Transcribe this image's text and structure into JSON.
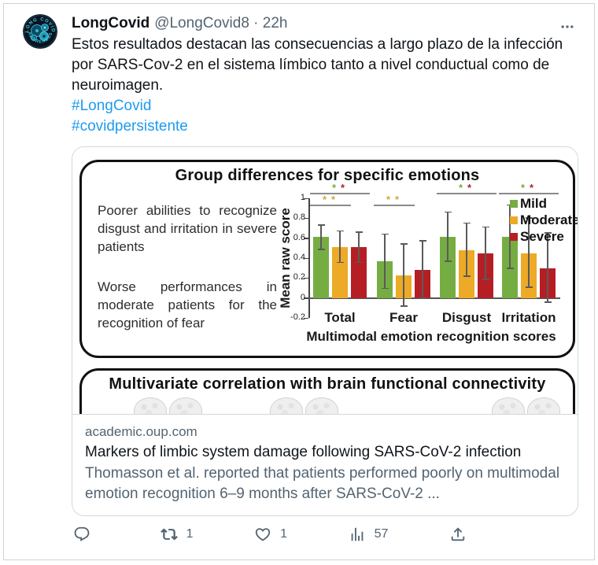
{
  "colors": {
    "accent_blue": "#1d9bf0",
    "text_dark": "#0f1419",
    "text_gray": "#536471",
    "card_border": "#cfd9de",
    "bar_green": "#76ad43",
    "bar_yellow": "#edaa27",
    "bar_red": "#b51f24"
  },
  "tweet": {
    "user": {
      "name": "LongCovid",
      "handle_time": "@LongCovid8 · 22h",
      "avatar_text_top": "LONG COVID",
      "avatar_text_bottom": "AWARENESS"
    },
    "text": "Estos resultados destacan las consecuencias a largo plazo de la infección por SARS-Cov-2 en el sistema límbico tanto a nivel conductual como de neuroimagen.",
    "hashtags": [
      "#LongCovid",
      "#covidpersistente"
    ]
  },
  "figure": {
    "panel1_title": "Group differences for specific emotions",
    "panel1_text1": "Poorer abilities to recognize disgust and irritation in severe patients",
    "panel1_text2": "Worse performances in moderate patients for the recognition of fear",
    "panel2_title": "Multivariate correlation with brain functional connectivity"
  },
  "chart_data": {
    "type": "bar",
    "title": "Group differences for specific emotions",
    "categories": [
      "Total",
      "Fear",
      "Disgust",
      "Irritation"
    ],
    "series": [
      {
        "name": "Mild",
        "color": "#76ad43",
        "values": [
          0.61,
          0.37,
          0.61,
          0.61
        ],
        "err_low": [
          0.49,
          0.1,
          0.37,
          0.3
        ],
        "err_high": [
          0.73,
          0.64,
          0.86,
          0.93
        ]
      },
      {
        "name": "Moderate",
        "color": "#edaa27",
        "values": [
          0.51,
          0.23,
          0.48,
          0.45
        ],
        "err_low": [
          0.36,
          -0.08,
          0.22,
          0.11
        ],
        "err_high": [
          0.67,
          0.54,
          0.75,
          0.8
        ]
      },
      {
        "name": "Severe",
        "color": "#b51f24",
        "values": [
          0.51,
          0.28,
          0.45,
          0.3
        ],
        "err_low": [
          0.36,
          0.0,
          0.19,
          -0.04
        ],
        "err_high": [
          0.66,
          0.57,
          0.71,
          0.65
        ]
      }
    ],
    "ylabel": "Mean raw score",
    "xlabel": "Multimodal emotion recognition scores",
    "ylim": [
      -0.2,
      1
    ],
    "yticks": [
      1,
      0.8,
      0.6,
      0.4,
      0.2,
      0,
      -0.2
    ],
    "grid": false,
    "legend_position": "upper right",
    "significance": [
      {
        "category_index": 0,
        "row": 0,
        "star": "*",
        "star_colors": [
          "#76ad43",
          "#b51f24"
        ],
        "span": [
          0,
          2
        ]
      },
      {
        "category_index": 0,
        "row": 1,
        "star": "*",
        "star_colors": [
          "#cfa93e",
          "#cfa93e"
        ],
        "span": [
          0,
          1
        ]
      },
      {
        "category_index": 1,
        "row": 1,
        "star": "*",
        "star_colors": [
          "#cfa93e",
          "#cfa93e"
        ],
        "span": [
          0,
          1
        ]
      },
      {
        "category_index": 2,
        "row": 0,
        "star": "*",
        "star_colors": [
          "#76ad43",
          "#b51f24"
        ],
        "span": [
          0,
          2
        ]
      },
      {
        "category_index": 3,
        "row": 0,
        "star": "*",
        "star_colors": [
          "#76ad43",
          "#b51f24"
        ],
        "span": [
          0,
          2
        ]
      }
    ]
  },
  "card": {
    "domain": "academic.oup.com",
    "title": "Markers of limbic system damage following SARS-CoV-2 infection",
    "description": "Thomasson et al. reported that patients performed poorly on multimodal emotion recognition 6–9 months after SARS-CoV-2 ..."
  },
  "actions": {
    "reply_count": "",
    "retweet_count": "1",
    "like_count": "1",
    "view_count": "57"
  }
}
